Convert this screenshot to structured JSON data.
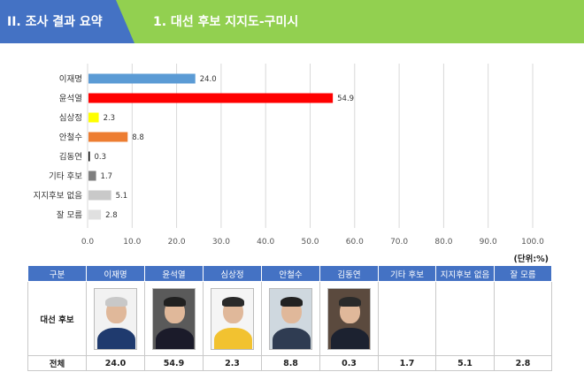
{
  "header": {
    "section": "II. 조사 결과 요약",
    "title": "1. 대선 후보 지지도-구미시",
    "colors": {
      "section_bg": "#4472c4",
      "title_bg": "#92d050"
    }
  },
  "chart_data": {
    "type": "bar",
    "orientation": "horizontal",
    "categories": [
      "이재명",
      "윤석열",
      "심상정",
      "안철수",
      "김동연",
      "기타 후보",
      "지지후보 없음",
      "잘 모름"
    ],
    "values": [
      24.0,
      54.9,
      2.3,
      8.8,
      0.3,
      1.7,
      5.1,
      2.8
    ],
    "value_labels": [
      "24.0",
      "54.9",
      "2.3",
      "8.8",
      "0.3",
      "1.7",
      "5.1",
      "2.8"
    ],
    "colors": [
      "#5b9bd5",
      "#ff0000",
      "#ffff00",
      "#ed7d31",
      "#000000",
      "#7f7f7f",
      "#c9c9c9",
      "#e0e0e0"
    ],
    "xlim": [
      0,
      100
    ],
    "xticks": [
      "0.0",
      "10.0",
      "20.0",
      "30.0",
      "40.0",
      "50.0",
      "60.0",
      "70.0",
      "80.0",
      "90.0",
      "100.0"
    ],
    "grid": true,
    "title": "",
    "xlabel": "",
    "ylabel": ""
  },
  "unit_note": "(단위:%)",
  "table": {
    "headers": [
      "구분",
      "이재명",
      "윤석열",
      "심상정",
      "안철수",
      "김동연",
      "기타 후보",
      "지지후보 없음",
      "잘 모름"
    ],
    "photo_row_label": "대선 후보",
    "photos": [
      {
        "name": "이재명-photo",
        "bg": "#f2f2f2",
        "hair": "#c8c8c8",
        "suit": "#1f3a6e"
      },
      {
        "name": "윤석열-photo",
        "bg": "#5a5a5a",
        "hair": "#202020",
        "suit": "#1b1b2a"
      },
      {
        "name": "심상정-photo",
        "bg": "#f5f5f5",
        "hair": "#2a2a2a",
        "suit": "#f2c230"
      },
      {
        "name": "안철수-photo",
        "bg": "#cfd8df",
        "hair": "#222222",
        "suit": "#2f3c52"
      },
      {
        "name": "김동연-photo",
        "bg": "#5b4a3e",
        "hair": "#2a2a2a",
        "suit": "#1c2230"
      }
    ],
    "total_row_label": "전체",
    "totals": [
      "24.0",
      "54.9",
      "2.3",
      "8.8",
      "0.3",
      "1.7",
      "5.1",
      "2.8"
    ]
  }
}
